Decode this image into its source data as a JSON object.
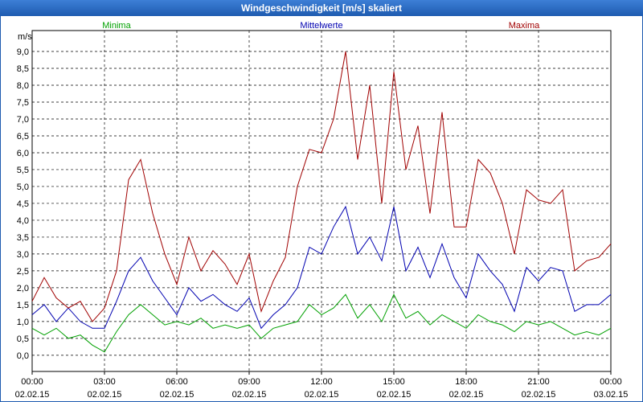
{
  "chart_data": {
    "type": "line",
    "title": "Windgeschwindigkeit [m/s] skaliert",
    "y_label": "m/s",
    "x": [
      0,
      0.5,
      1,
      1.5,
      2,
      2.5,
      3,
      3.5,
      4,
      4.5,
      5,
      5.5,
      6,
      6.5,
      7,
      7.5,
      8,
      8.5,
      9,
      9.5,
      10,
      10.5,
      11,
      11.5,
      12,
      12.5,
      13,
      13.5,
      14,
      14.5,
      15,
      15.5,
      16,
      16.5,
      17,
      17.5,
      18,
      18.5,
      19,
      19.5,
      20,
      20.5,
      21,
      21.5,
      22,
      22.5,
      23,
      23.5,
      24
    ],
    "series": [
      {
        "name": "Minima",
        "color": "#00a000",
        "values": [
          0.8,
          0.6,
          0.8,
          0.5,
          0.6,
          0.3,
          0.1,
          0.7,
          1.2,
          1.5,
          1.2,
          0.9,
          1.0,
          0.9,
          1.1,
          0.8,
          0.9,
          0.8,
          0.9,
          0.5,
          0.8,
          0.9,
          1.0,
          1.5,
          1.2,
          1.4,
          1.8,
          1.1,
          1.5,
          1.0,
          1.8,
          1.1,
          1.3,
          0.9,
          1.2,
          1.0,
          0.8,
          1.2,
          1.0,
          0.9,
          0.7,
          1.0,
          0.9,
          1.0,
          0.8,
          0.6,
          0.7,
          0.6,
          0.8
        ]
      },
      {
        "name": "Mittelwerte",
        "color": "#0000b0",
        "values": [
          1.2,
          1.5,
          1.0,
          1.4,
          1.0,
          0.8,
          0.8,
          1.6,
          2.5,
          2.9,
          2.2,
          1.7,
          1.2,
          2.0,
          1.6,
          1.8,
          1.5,
          1.3,
          1.7,
          0.8,
          1.2,
          1.5,
          2.0,
          3.2,
          3.0,
          3.8,
          4.4,
          3.0,
          3.5,
          2.8,
          4.4,
          2.5,
          3.2,
          2.3,
          3.3,
          2.3,
          1.7,
          3.0,
          2.5,
          2.1,
          1.3,
          2.6,
          2.2,
          2.6,
          2.5,
          1.3,
          1.5,
          1.5,
          1.8
        ]
      },
      {
        "name": "Maxima",
        "color": "#a00000",
        "values": [
          1.6,
          2.3,
          1.7,
          1.4,
          1.6,
          1.0,
          1.4,
          2.5,
          5.2,
          5.8,
          4.2,
          3.0,
          2.1,
          3.5,
          2.5,
          3.1,
          2.7,
          2.1,
          3.0,
          1.3,
          2.2,
          2.9,
          5.0,
          6.1,
          6.0,
          7.0,
          9.0,
          5.8,
          8.0,
          4.5,
          8.4,
          5.5,
          6.8,
          4.2,
          7.2,
          3.8,
          3.8,
          5.8,
          5.4,
          4.5,
          3.0,
          4.9,
          4.6,
          4.5,
          4.9,
          2.5,
          2.8,
          2.9,
          3.3
        ]
      }
    ],
    "xlim": [
      0,
      24
    ],
    "xticks": [
      {
        "value": 0,
        "label": "00:00 02.02.15"
      },
      {
        "value": 3,
        "label": "03:00 02.02.15"
      },
      {
        "value": 6,
        "label": "06:00 02.02.15"
      },
      {
        "value": 9,
        "label": "09:00 02.02.15"
      },
      {
        "value": 12,
        "label": "12:00 02.02.15"
      },
      {
        "value": 15,
        "label": "15:00 02.02.15"
      },
      {
        "value": 18,
        "label": "18:00 02.02.15"
      },
      {
        "value": 21,
        "label": "21:00 02.02.15"
      },
      {
        "value": 24,
        "label": "00:00 03.02.15"
      }
    ],
    "ylim": [
      -0.48,
      9.62
    ],
    "yticks": [
      {
        "value": 0,
        "label": "0,0"
      },
      {
        "value": 0.5,
        "label": "0,5"
      },
      {
        "value": 1,
        "label": "1,0"
      },
      {
        "value": 1.5,
        "label": "1,5"
      },
      {
        "value": 2,
        "label": "2,0"
      },
      {
        "value": 2.5,
        "label": "2,5"
      },
      {
        "value": 3,
        "label": "3,0"
      },
      {
        "value": 3.5,
        "label": "3,5"
      },
      {
        "value": 4,
        "label": "4,0"
      },
      {
        "value": 4.5,
        "label": "4,5"
      },
      {
        "value": 5,
        "label": "5,0"
      },
      {
        "value": 5.5,
        "label": "5,5"
      },
      {
        "value": 6,
        "label": "6,0"
      },
      {
        "value": 6.5,
        "label": "6,5"
      },
      {
        "value": 7,
        "label": "7,0"
      },
      {
        "value": 7.5,
        "label": "7,5"
      },
      {
        "value": 8,
        "label": "8,0"
      },
      {
        "value": 8.5,
        "label": "8,5"
      },
      {
        "value": 9,
        "label": "9,0"
      }
    ],
    "grid": true
  }
}
